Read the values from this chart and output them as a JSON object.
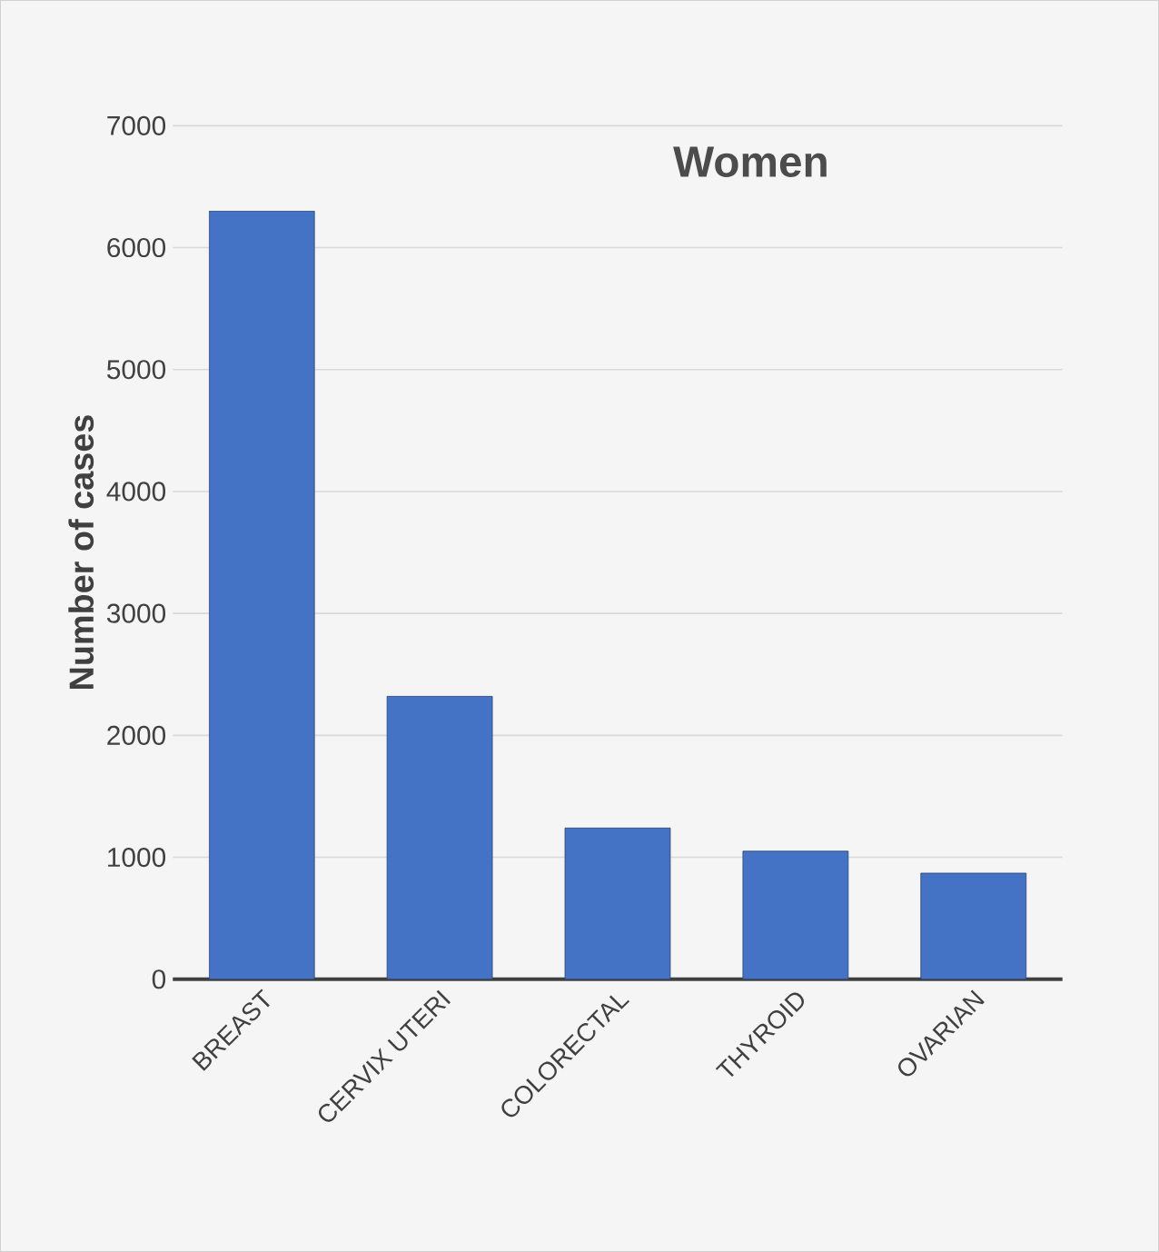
{
  "chart_data": {
    "type": "bar",
    "title": "Women",
    "ylabel": "Number of cases",
    "categories": [
      "BREAST",
      "CERVIX UTERI",
      "COLORECTAL",
      "THYROID",
      "OVARIAN"
    ],
    "values": [
      6300,
      2320,
      1240,
      1050,
      870
    ],
    "color": "#4472c4",
    "ylim": [
      0,
      7000
    ],
    "yticks": [
      0,
      1000,
      2000,
      3000,
      4000,
      5000,
      6000,
      7000
    ],
    "grid": "y"
  }
}
